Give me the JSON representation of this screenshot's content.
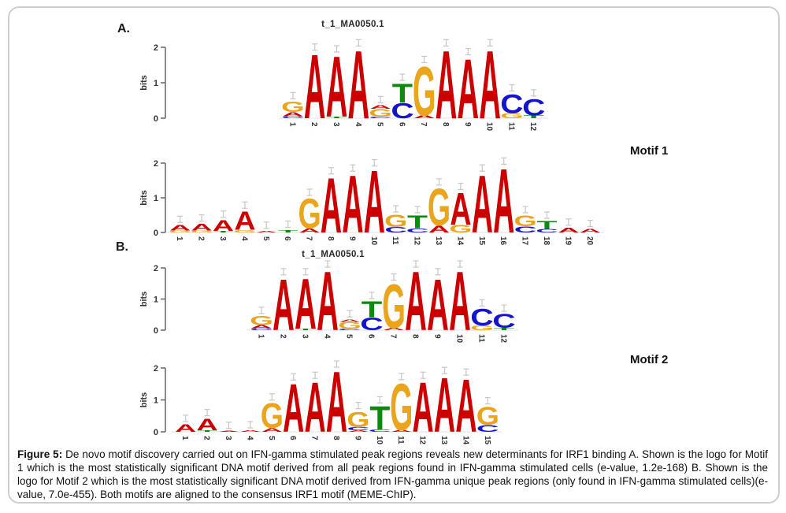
{
  "panels": {
    "a_label": "A.",
    "b_label": "B."
  },
  "motif_labels": {
    "motif1": "Motif 1",
    "motif2": "Motif 2"
  },
  "caption": {
    "label": "Figure 5:",
    "text": " De novo motif discovery carried out on IFN-gamma stimulated peak regions reveals new determinants for IRF1 binding A. Shown is the logo for Motif 1 which is the most statistically significant DNA motif derived from all peak regions found in IFN-gamma stimulated cells (e-value, 1.2e-168) B. Shown is the logo for Motif 2 which is the most statistically significant DNA motif derived from IFN-gamma unique peak regions (only found in IFN-gamma stimulated cells)(e-value, 7.0e-455). Both motifs are aligned to the consensus IRF1 motif (MEME-ChIP)."
  },
  "colors": {
    "A": "#CC0000",
    "C": "#1414CC",
    "G": "#EBA51C",
    "T": "#0B8A0B"
  },
  "chart_data": [
    {
      "type": "sequence-logo",
      "panel": "A",
      "title": "t_1_MA0050.1",
      "ylabel": "bits",
      "yticks": [
        0,
        1,
        2
      ],
      "ylim": [
        0,
        2
      ],
      "positions": [
        1,
        2,
        3,
        4,
        5,
        6,
        7,
        8,
        9,
        10,
        11,
        12
      ],
      "stacks": [
        [
          [
            "C",
            0.06
          ],
          [
            "A",
            0.12
          ],
          [
            "G",
            0.3
          ]
        ],
        [
          [
            "A",
            1.85
          ]
        ],
        [
          [
            "T",
            0.05
          ],
          [
            "A",
            1.75
          ]
        ],
        [
          [
            "A",
            1.97
          ]
        ],
        [
          [
            "C",
            0.05
          ],
          [
            "G",
            0.22
          ],
          [
            "A",
            0.1
          ]
        ],
        [
          [
            "C",
            0.45
          ],
          [
            "T",
            0.55
          ]
        ],
        [
          [
            "A",
            0.08
          ],
          [
            "G",
            1.42
          ]
        ],
        [
          [
            "A",
            1.97
          ]
        ],
        [
          [
            "A",
            1.72
          ]
        ],
        [
          [
            "A",
            1.97
          ]
        ],
        [
          [
            "G",
            0.15
          ],
          [
            "C",
            0.55
          ]
        ],
        [
          [
            "T",
            0.08
          ],
          [
            "C",
            0.48
          ]
        ]
      ]
    },
    {
      "type": "sequence-logo",
      "panel": "A",
      "title": "",
      "label": "Motif 1",
      "ylabel": "bits",
      "yticks": [
        0,
        1,
        2
      ],
      "ylim": [
        0,
        2
      ],
      "positions": [
        1,
        2,
        3,
        4,
        5,
        6,
        7,
        8,
        9,
        10,
        11,
        12,
        13,
        14,
        15,
        16,
        17,
        18,
        19,
        20
      ],
      "stacks": [
        [
          [
            "G",
            0.06
          ],
          [
            "A",
            0.16
          ]
        ],
        [
          [
            "G",
            0.06
          ],
          [
            "A",
            0.2
          ]
        ],
        [
          [
            "T",
            0.05
          ],
          [
            "A",
            0.32
          ]
        ],
        [
          [
            "G",
            0.08
          ],
          [
            "A",
            0.55
          ]
        ],
        [
          [
            "A",
            0.05
          ]
        ],
        [
          [
            "T",
            0.08
          ]
        ],
        [
          [
            "A",
            0.12
          ],
          [
            "G",
            0.88
          ]
        ],
        [
          [
            "A",
            1.62
          ]
        ],
        [
          [
            "A",
            1.7
          ]
        ],
        [
          [
            "A",
            1.85
          ]
        ],
        [
          [
            "C",
            0.16
          ],
          [
            "G",
            0.36
          ]
        ],
        [
          [
            "C",
            0.12
          ],
          [
            "T",
            0.38
          ]
        ],
        [
          [
            "A",
            0.2
          ],
          [
            "G",
            1.1
          ]
        ],
        [
          [
            "G",
            0.22
          ],
          [
            "A",
            0.95
          ]
        ],
        [
          [
            "A",
            1.7
          ]
        ],
        [
          [
            "A",
            1.9
          ]
        ],
        [
          [
            "C",
            0.18
          ],
          [
            "G",
            0.32
          ]
        ],
        [
          [
            "C",
            0.1
          ],
          [
            "T",
            0.24
          ]
        ],
        [
          [
            "A",
            0.14
          ]
        ],
        [
          [
            "A",
            0.1
          ]
        ]
      ]
    },
    {
      "type": "sequence-logo",
      "panel": "B",
      "title": "t_1_MA0050.1",
      "ylabel": "bits",
      "yticks": [
        0,
        1,
        2
      ],
      "ylim": [
        0,
        2
      ],
      "positions": [
        1,
        2,
        3,
        4,
        5,
        6,
        7,
        8,
        9,
        10,
        11,
        12
      ],
      "stacks": [
        [
          [
            "C",
            0.06
          ],
          [
            "A",
            0.1
          ],
          [
            "G",
            0.3
          ]
        ],
        [
          [
            "A",
            1.7
          ]
        ],
        [
          [
            "T",
            0.05
          ],
          [
            "A",
            1.65
          ]
        ],
        [
          [
            "A",
            1.95
          ]
        ],
        [
          [
            "C",
            0.05
          ],
          [
            "G",
            0.22
          ],
          [
            "A",
            0.08
          ]
        ],
        [
          [
            "C",
            0.42
          ],
          [
            "T",
            0.52
          ]
        ],
        [
          [
            "A",
            0.08
          ],
          [
            "G",
            1.45
          ]
        ],
        [
          [
            "A",
            1.95
          ]
        ],
        [
          [
            "A",
            1.7
          ]
        ],
        [
          [
            "A",
            1.95
          ]
        ],
        [
          [
            "G",
            0.15
          ],
          [
            "C",
            0.55
          ]
        ],
        [
          [
            "T",
            0.08
          ],
          [
            "C",
            0.45
          ]
        ]
      ]
    },
    {
      "type": "sequence-logo",
      "panel": "B",
      "title": "",
      "label": "Motif 2",
      "ylabel": "bits",
      "yticks": [
        0,
        1,
        2
      ],
      "ylim": [
        0,
        2
      ],
      "positions": [
        1,
        2,
        3,
        4,
        5,
        6,
        7,
        8,
        9,
        10,
        11,
        12,
        13,
        14,
        15
      ],
      "stacks": [
        [
          [
            "A",
            0.25
          ]
        ],
        [
          [
            "T",
            0.05
          ],
          [
            "A",
            0.38
          ]
        ],
        [
          [
            "A",
            0.03
          ]
        ],
        [
          [
            "A",
            0.05
          ]
        ],
        [
          [
            "A",
            0.12
          ],
          [
            "G",
            0.8
          ]
        ],
        [
          [
            "A",
            1.55
          ]
        ],
        [
          [
            "A",
            1.6
          ]
        ],
        [
          [
            "A",
            1.95
          ]
        ],
        [
          [
            "A",
            0.05
          ],
          [
            "C",
            0.1
          ],
          [
            "G",
            0.5
          ]
        ],
        [
          [
            "C",
            0.08
          ],
          [
            "T",
            0.75
          ]
        ],
        [
          [
            "A",
            0.06
          ],
          [
            "G",
            1.5
          ]
        ],
        [
          [
            "A",
            1.6
          ]
        ],
        [
          [
            "A",
            1.75
          ]
        ],
        [
          [
            "A",
            1.7
          ]
        ],
        [
          [
            "C",
            0.22
          ],
          [
            "G",
            0.58
          ]
        ]
      ]
    }
  ]
}
